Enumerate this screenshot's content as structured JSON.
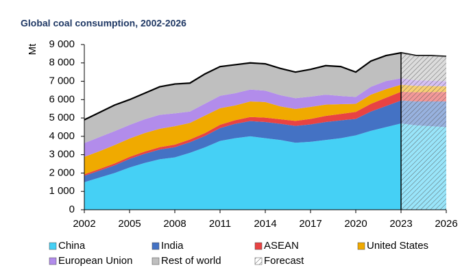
{
  "chart_data": {
    "type": "stacked_area",
    "title": "Global coal consumption, 2002-2026",
    "y_label": "Mt",
    "x": [
      2002,
      2003,
      2004,
      2005,
      2006,
      2007,
      2008,
      2009,
      2010,
      2011,
      2012,
      2013,
      2014,
      2015,
      2016,
      2017,
      2018,
      2019,
      2020,
      2021,
      2022,
      2023,
      2024,
      2025,
      2026
    ],
    "xlim": [
      2002,
      2026
    ],
    "xticks": [
      2002,
      2005,
      2008,
      2011,
      2014,
      2017,
      2020,
      2023,
      2026
    ],
    "ylim": [
      0,
      9000
    ],
    "yticks": [
      0,
      {
        "value": 1000,
        "label": "1 000"
      },
      {
        "value": 2000,
        "label": "2 000"
      },
      {
        "value": 3000,
        "label": "3 000"
      },
      {
        "value": 4000,
        "label": "4 000"
      },
      {
        "value": 5000,
        "label": "5 000"
      },
      {
        "value": 6000,
        "label": "6 000"
      },
      {
        "value": 7000,
        "label": "7 000"
      },
      {
        "value": 8000,
        "label": "8 000"
      },
      {
        "value": 9000,
        "label": "9 000"
      }
    ],
    "forecast_start": 2023,
    "forecast_label": "Forecast",
    "series": [
      {
        "name": "China",
        "color": "#45d0f5",
        "values": [
          1500,
          1750,
          2000,
          2300,
          2550,
          2750,
          2850,
          3100,
          3400,
          3750,
          3900,
          4000,
          3900,
          3800,
          3650,
          3700,
          3800,
          3900,
          4050,
          4300,
          4500,
          4700,
          4600,
          4550,
          4500
        ]
      },
      {
        "name": "India",
        "color": "#4472c4",
        "values": [
          350,
          380,
          420,
          470,
          500,
          530,
          560,
          580,
          620,
          700,
          780,
          830,
          880,
          880,
          920,
          950,
          980,
          970,
          900,
          1050,
          1150,
          1250,
          1300,
          1350,
          1400
        ]
      },
      {
        "name": "ASEAN",
        "color": "#e84343",
        "values": [
          80,
          90,
          100,
          110,
          120,
          130,
          140,
          150,
          160,
          180,
          200,
          220,
          240,
          250,
          270,
          300,
          330,
          350,
          380,
          420,
          450,
          480,
          500,
          510,
          520
        ]
      },
      {
        "name": "United States",
        "color": "#f0aa00",
        "values": [
          950,
          970,
          1000,
          1000,
          1010,
          1000,
          1000,
          900,
          950,
          900,
          800,
          850,
          850,
          700,
          650,
          650,
          620,
          530,
          440,
          500,
          470,
          380,
          350,
          330,
          300
        ]
      },
      {
        "name": "European Union",
        "color": "#b28ceb",
        "values": [
          750,
          770,
          760,
          740,
          750,
          760,
          700,
          620,
          650,
          680,
          670,
          650,
          620,
          610,
          590,
          560,
          540,
          450,
          380,
          430,
          440,
          350,
          300,
          290,
          280
        ]
      },
      {
        "name": "Rest of world",
        "color": "#bfbfbf",
        "values": [
          1270,
          1340,
          1420,
          1380,
          1420,
          1530,
          1600,
          1550,
          1620,
          1590,
          1550,
          1450,
          1460,
          1460,
          1420,
          1490,
          1580,
          1600,
          1350,
          1400,
          1390,
          1390,
          1350,
          1370,
          1350
        ]
      }
    ]
  }
}
